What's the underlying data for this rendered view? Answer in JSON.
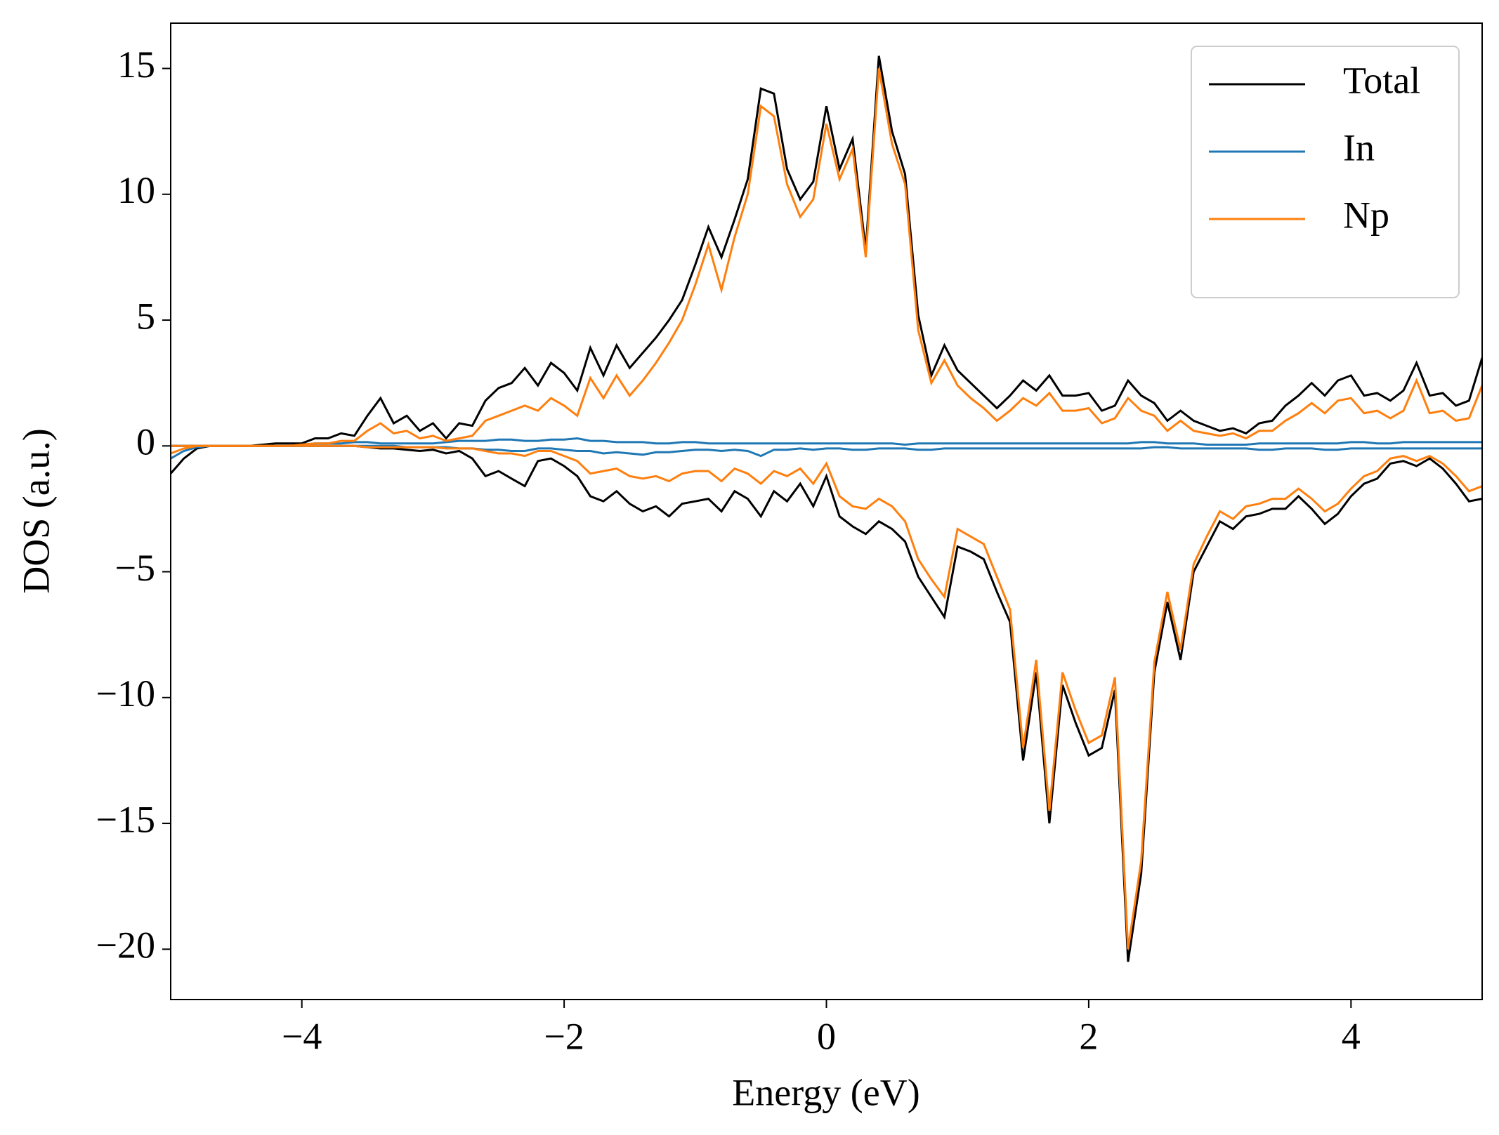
{
  "chart_data": {
    "type": "line",
    "xlabel": "Energy (eV)",
    "ylabel": "DOS (a.u.)",
    "x": [
      -5,
      -4.9,
      -4.8,
      -4.7,
      -4.6,
      -4.5,
      -4.4,
      -4.3,
      -4.2,
      -4.1,
      -4,
      -3.9,
      -3.8,
      -3.7,
      -3.6,
      -3.5,
      -3.4,
      -3.3,
      -3.2,
      -3.1,
      -3,
      -2.9,
      -2.8,
      -2.7,
      -2.6,
      -2.5,
      -2.4,
      -2.3,
      -2.2,
      -2.1,
      -2,
      -1.9,
      -1.8,
      -1.7,
      -1.6,
      -1.5,
      -1.4,
      -1.3,
      -1.2,
      -1.1,
      -1,
      -0.9,
      -0.8,
      -0.7,
      -0.6,
      -0.5,
      -0.4,
      -0.3,
      -0.2,
      -0.1,
      0,
      0.1,
      0.2,
      0.3,
      0.4,
      0.5,
      0.6,
      0.7,
      0.8,
      0.9,
      1,
      1.1,
      1.2,
      1.3,
      1.4,
      1.5,
      1.6,
      1.7,
      1.8,
      1.9,
      2,
      2.1,
      2.2,
      2.3,
      2.4,
      2.5,
      2.6,
      2.7,
      2.8,
      2.9,
      3,
      3.1,
      3.2,
      3.3,
      3.4,
      3.5,
      3.6,
      3.7,
      3.8,
      3.9,
      4,
      4.1,
      4.2,
      4.3,
      4.4,
      4.5,
      4.6,
      4.7,
      4.8,
      4.9,
      5
    ],
    "series": [
      {
        "name": "Total",
        "color": "#000000",
        "values": [
          0,
          0,
          0,
          0,
          0,
          0,
          0,
          0.05,
          0.1,
          0.1,
          0.1,
          0.3,
          0.3,
          0.5,
          0.4,
          1.2,
          1.9,
          0.9,
          1.2,
          0.6,
          0.9,
          0.3,
          0.9,
          0.8,
          1.8,
          2.3,
          2.5,
          3.1,
          2.4,
          3.3,
          2.9,
          2.2,
          3.9,
          2.8,
          4.0,
          3.1,
          3.7,
          4.3,
          5.0,
          5.8,
          7.2,
          8.7,
          7.5,
          9.0,
          10.6,
          14.2,
          14.0,
          11.0,
          9.8,
          10.5,
          13.5,
          11.0,
          12.2,
          7.8,
          15.5,
          12.5,
          10.8,
          5.2,
          2.8,
          4.0,
          3.0,
          2.5,
          2.0,
          1.5,
          2.0,
          2.6,
          2.2,
          2.8,
          2.0,
          2.0,
          2.1,
          1.4,
          1.6,
          2.6,
          2.0,
          1.7,
          1.0,
          1.4,
          1.0,
          0.8,
          0.6,
          0.7,
          0.5,
          0.9,
          1.0,
          1.6,
          2.0,
          2.5,
          2.0,
          2.6,
          2.8,
          2.0,
          2.1,
          1.8,
          2.2,
          3.3,
          2.0,
          2.1,
          1.6,
          1.8,
          3.5
        ],
        "values_down": [
          -1.1,
          -0.5,
          -0.1,
          0,
          0,
          0,
          0,
          0,
          0,
          0,
          0,
          0,
          0,
          0,
          0,
          -0.05,
          -0.1,
          -0.1,
          -0.15,
          -0.2,
          -0.15,
          -0.3,
          -0.2,
          -0.5,
          -1.2,
          -1.0,
          -1.3,
          -1.6,
          -0.6,
          -0.5,
          -0.8,
          -1.2,
          -2.0,
          -2.2,
          -1.8,
          -2.3,
          -2.6,
          -2.4,
          -2.8,
          -2.3,
          -2.2,
          -2.1,
          -2.6,
          -1.8,
          -2.1,
          -2.8,
          -1.8,
          -2.2,
          -1.5,
          -2.4,
          -1.2,
          -2.8,
          -3.2,
          -3.5,
          -3.0,
          -3.3,
          -3.8,
          -5.2,
          -6.0,
          -6.8,
          -4.0,
          -4.2,
          -4.5,
          -5.8,
          -7.0,
          -12.5,
          -9.0,
          -15.0,
          -9.5,
          -11.0,
          -12.3,
          -12.0,
          -9.7,
          -20.5,
          -17.0,
          -9.0,
          -6.2,
          -8.5,
          -5.0,
          -4.0,
          -3.0,
          -3.3,
          -2.8,
          -2.7,
          -2.5,
          -2.5,
          -2.0,
          -2.5,
          -3.1,
          -2.7,
          -2.0,
          -1.5,
          -1.3,
          -0.7,
          -0.6,
          -0.8,
          -0.5,
          -0.9,
          -1.5,
          -2.2,
          -2.1
        ]
      },
      {
        "name": "In",
        "color": "#1f77b4",
        "values": [
          0,
          0,
          0,
          0,
          0,
          0,
          0,
          0,
          0,
          0,
          0.05,
          0.1,
          0.1,
          0.1,
          0.15,
          0.15,
          0.1,
          0.1,
          0.1,
          0.1,
          0.1,
          0.15,
          0.2,
          0.2,
          0.2,
          0.25,
          0.25,
          0.2,
          0.2,
          0.25,
          0.25,
          0.3,
          0.2,
          0.2,
          0.15,
          0.15,
          0.15,
          0.1,
          0.1,
          0.15,
          0.15,
          0.1,
          0.1,
          0.1,
          0.1,
          0.1,
          0.1,
          0.1,
          0.1,
          0.1,
          0.1,
          0.1,
          0.1,
          0.1,
          0.1,
          0.1,
          0.05,
          0.1,
          0.1,
          0.1,
          0.1,
          0.1,
          0.1,
          0.1,
          0.1,
          0.1,
          0.1,
          0.1,
          0.1,
          0.1,
          0.1,
          0.1,
          0.1,
          0.1,
          0.15,
          0.15,
          0.1,
          0.1,
          0.1,
          0.05,
          0.05,
          0.05,
          0.05,
          0.1,
          0.1,
          0.1,
          0.1,
          0.1,
          0.1,
          0.1,
          0.15,
          0.15,
          0.1,
          0.1,
          0.15,
          0.15,
          0.15,
          0.15,
          0.15,
          0.15,
          0.15
        ],
        "values_down": [
          -0.5,
          -0.2,
          -0.05,
          0,
          0,
          0,
          0,
          0,
          0,
          0,
          0,
          0,
          0,
          0,
          0,
          0,
          0,
          0,
          -0.05,
          -0.05,
          -0.05,
          -0.05,
          -0.1,
          -0.1,
          -0.15,
          -0.15,
          -0.2,
          -0.2,
          -0.1,
          -0.1,
          -0.15,
          -0.2,
          -0.2,
          -0.3,
          -0.25,
          -0.3,
          -0.35,
          -0.25,
          -0.25,
          -0.2,
          -0.15,
          -0.15,
          -0.2,
          -0.15,
          -0.2,
          -0.4,
          -0.15,
          -0.15,
          -0.1,
          -0.15,
          -0.1,
          -0.1,
          -0.15,
          -0.15,
          -0.1,
          -0.1,
          -0.1,
          -0.15,
          -0.15,
          -0.1,
          -0.1,
          -0.1,
          -0.1,
          -0.1,
          -0.1,
          -0.1,
          -0.1,
          -0.1,
          -0.1,
          -0.1,
          -0.1,
          -0.1,
          -0.1,
          -0.1,
          -0.1,
          -0.05,
          -0.05,
          -0.1,
          -0.1,
          -0.1,
          -0.1,
          -0.1,
          -0.1,
          -0.15,
          -0.15,
          -0.1,
          -0.1,
          -0.1,
          -0.15,
          -0.15,
          -0.1,
          -0.1,
          -0.1,
          -0.1,
          -0.1,
          -0.1,
          -0.1,
          -0.1,
          -0.1,
          -0.1,
          -0.1
        ]
      },
      {
        "name": "Np",
        "color": "#ff7f0e",
        "values": [
          0,
          0,
          0,
          0,
          0,
          0,
          0,
          0,
          0,
          0,
          0.05,
          0.1,
          0.1,
          0.2,
          0.2,
          0.6,
          0.9,
          0.5,
          0.6,
          0.3,
          0.4,
          0.2,
          0.3,
          0.4,
          1.0,
          1.2,
          1.4,
          1.6,
          1.4,
          1.9,
          1.6,
          1.2,
          2.7,
          1.9,
          2.8,
          2.0,
          2.6,
          3.3,
          4.1,
          5.0,
          6.4,
          8.0,
          6.2,
          8.3,
          10.0,
          13.5,
          13.1,
          10.4,
          9.1,
          9.8,
          12.8,
          10.6,
          11.8,
          7.5,
          15.0,
          12.0,
          10.4,
          4.6,
          2.5,
          3.4,
          2.4,
          1.9,
          1.5,
          1.0,
          1.4,
          1.9,
          1.6,
          2.1,
          1.4,
          1.4,
          1.5,
          0.9,
          1.1,
          1.9,
          1.4,
          1.2,
          0.6,
          1.0,
          0.6,
          0.5,
          0.4,
          0.5,
          0.3,
          0.6,
          0.6,
          1.0,
          1.3,
          1.7,
          1.3,
          1.8,
          1.9,
          1.3,
          1.4,
          1.1,
          1.4,
          2.6,
          1.3,
          1.4,
          1.0,
          1.1,
          2.4
        ],
        "values_down": [
          -0.3,
          -0.1,
          0,
          0,
          0,
          0,
          0,
          0,
          0,
          0,
          0,
          0,
          0,
          0,
          0,
          -0.05,
          -0.05,
          -0.05,
          -0.05,
          -0.05,
          -0.05,
          -0.1,
          -0.1,
          -0.1,
          -0.2,
          -0.3,
          -0.3,
          -0.4,
          -0.2,
          -0.2,
          -0.4,
          -0.6,
          -1.1,
          -1.0,
          -0.9,
          -1.2,
          -1.3,
          -1.2,
          -1.4,
          -1.1,
          -1.0,
          -1.0,
          -1.4,
          -0.9,
          -1.1,
          -1.5,
          -1.0,
          -1.2,
          -0.9,
          -1.5,
          -0.7,
          -2.0,
          -2.4,
          -2.5,
          -2.1,
          -2.4,
          -3.0,
          -4.5,
          -5.3,
          -6.0,
          -3.3,
          -3.6,
          -3.9,
          -5.2,
          -6.5,
          -12.0,
          -8.5,
          -14.5,
          -9.0,
          -10.5,
          -11.8,
          -11.5,
          -9.2,
          -20.0,
          -16.5,
          -8.6,
          -5.8,
          -8.1,
          -4.7,
          -3.6,
          -2.6,
          -2.9,
          -2.4,
          -2.3,
          -2.1,
          -2.1,
          -1.7,
          -2.1,
          -2.6,
          -2.3,
          -1.7,
          -1.2,
          -1.0,
          -0.5,
          -0.4,
          -0.6,
          -0.4,
          -0.7,
          -1.2,
          -1.8,
          -1.6
        ]
      }
    ],
    "xlim": [
      -5,
      5
    ],
    "xticks": [
      {
        "value": -4,
        "label": "−4"
      },
      {
        "value": -2,
        "label": "−2"
      },
      0,
      2,
      4
    ],
    "ylim": [
      -22,
      16.8
    ],
    "yticks": [
      {
        "value": -20,
        "label": "−20"
      },
      {
        "value": -15,
        "label": "−15"
      },
      {
        "value": -10,
        "label": "−10"
      },
      {
        "value": -5,
        "label": "−5"
      },
      0,
      5,
      10,
      15
    ],
    "grid": false,
    "legend": "upper right"
  }
}
